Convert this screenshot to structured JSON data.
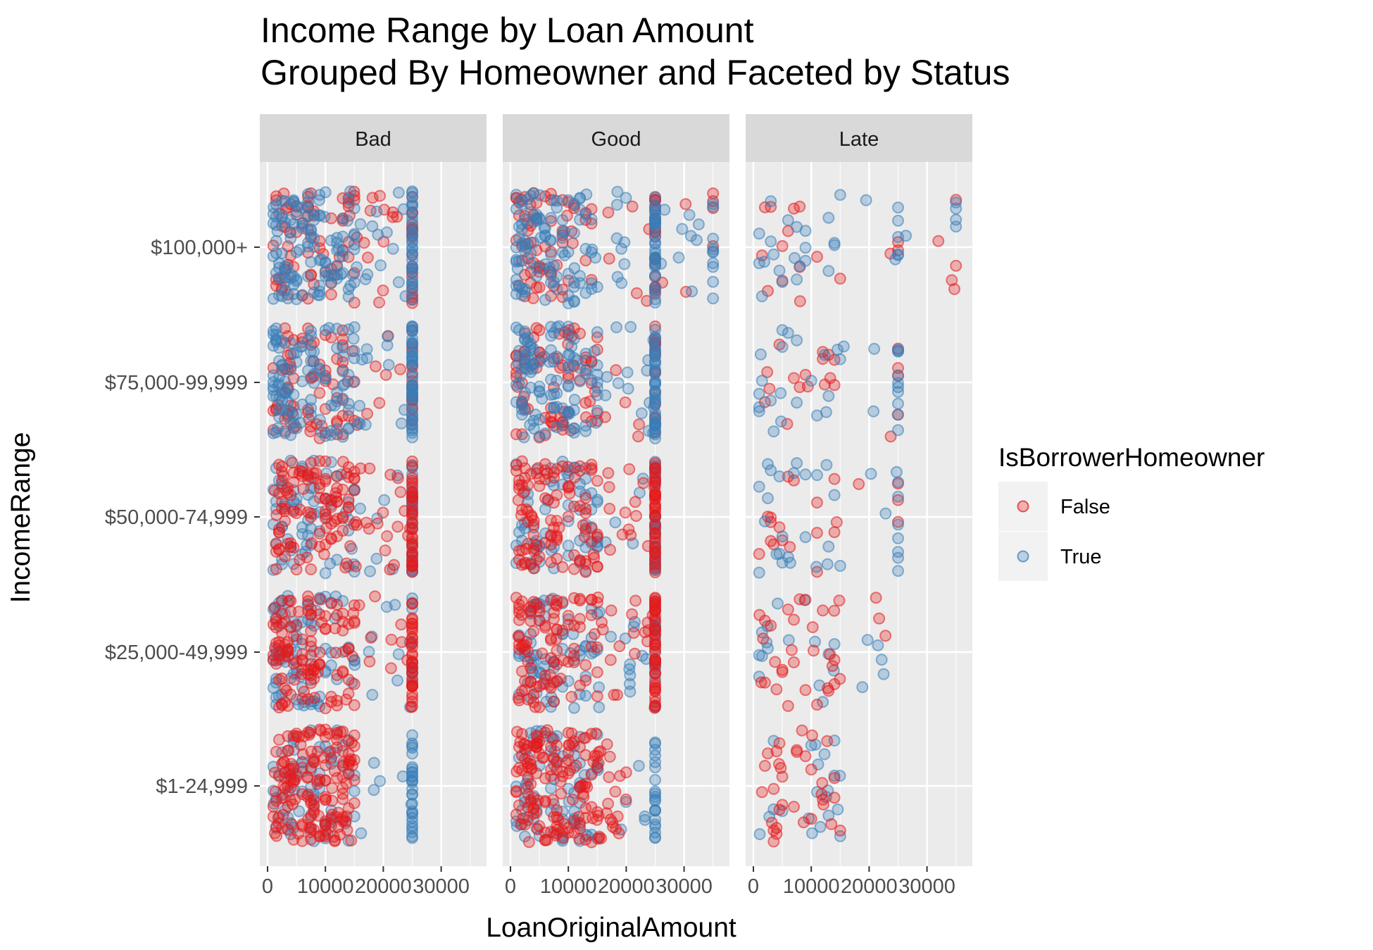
{
  "chart_data": {
    "type": "scatter",
    "title": "Income Range by Loan Amount",
    "subtitle": "Grouped By Homeowner and Faceted by Status",
    "xlabel": "LoanOriginalAmount",
    "ylabel": "IncomeRange",
    "xlim": [
      0,
      36500
    ],
    "x_ticks": [
      0,
      10000,
      20000,
      30000
    ],
    "x_tick_labels": [
      "0",
      "10000",
      "20000",
      "30000"
    ],
    "y_categories": [
      "$1-24,999",
      "$25,000-49,999",
      "$50,000-74,999",
      "$75,000-99,999",
      "$100,000+"
    ],
    "jitter": "vertical jitter within each income category",
    "facet_by": "Status",
    "facets": [
      {
        "label": "Bad",
        "ranges": [
          {
            "income": "$1-24,999",
            "false_max": 15000,
            "true_max": 25000,
            "dominant": "False"
          },
          {
            "income": "$25,000-49,999",
            "false_max": 25000,
            "true_max": 25000,
            "dominant": "False"
          },
          {
            "income": "$50,000-74,999",
            "false_max": 25000,
            "true_max": 25000,
            "dominant": "False"
          },
          {
            "income": "$75,000-99,999",
            "false_max": 25000,
            "true_max": 25000,
            "dominant": "True"
          },
          {
            "income": "$100,000+",
            "false_max": 25000,
            "true_max": 25000,
            "dominant": "True"
          }
        ]
      },
      {
        "label": "Good",
        "ranges": [
          {
            "income": "$1-24,999",
            "false_max": 20000,
            "true_max": 25000,
            "dominant": "False"
          },
          {
            "income": "$25,000-49,999",
            "false_max": 25000,
            "true_max": 25000,
            "dominant": "False"
          },
          {
            "income": "$50,000-74,999",
            "false_max": 25000,
            "true_max": 25000,
            "dominant": "False"
          },
          {
            "income": "$75,000-99,999",
            "false_max": 25000,
            "true_max": 25000,
            "dominant": "True"
          },
          {
            "income": "$100,000+",
            "false_max": 35000,
            "true_max": 35000,
            "dominant": "True"
          }
        ]
      },
      {
        "label": "Late",
        "ranges": [
          {
            "income": "$1-24,999",
            "false_max": 15000,
            "true_max": 15000,
            "dominant": "False"
          },
          {
            "income": "$25,000-49,999",
            "false_max": 23000,
            "true_max": 23000,
            "dominant": "False"
          },
          {
            "income": "$50,000-74,999",
            "false_max": 25000,
            "true_max": 25000,
            "dominant": "True"
          },
          {
            "income": "$75,000-99,999",
            "false_max": 25000,
            "true_max": 25000,
            "dominant": "True"
          },
          {
            "income": "$100,000+",
            "false_max": 35000,
            "true_max": 35000,
            "dominant": "True"
          }
        ]
      }
    ],
    "legend": {
      "title": "IsBorrowerHomeowner",
      "placement": "right",
      "entries": [
        {
          "label": "False",
          "color": "#E41A1C"
        },
        {
          "label": "True",
          "color": "#377EB8"
        }
      ]
    },
    "grid": true,
    "colors": {
      "panel": "#EBEBEB",
      "strip": "#D9D9D9",
      "gridline": "#FFFFFF"
    }
  }
}
